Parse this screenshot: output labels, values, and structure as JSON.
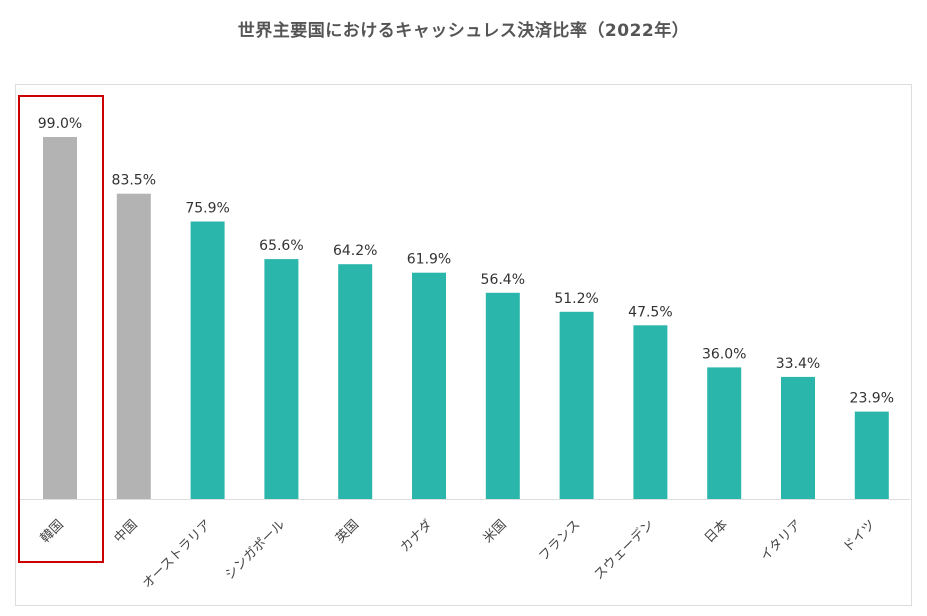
{
  "chart_data": {
    "type": "bar",
    "title": "世界主要国におけるキャッシュレス決済比率（2022年）",
    "categories": [
      "韓国",
      "中国",
      "オーストラリア",
      "シンガポール",
      "英国",
      "カナダ",
      "米国",
      "フランス",
      "スウェーデン",
      "日本",
      "イタリア",
      "ドイツ"
    ],
    "values": [
      99.0,
      83.5,
      75.9,
      65.6,
      64.2,
      61.9,
      56.4,
      51.2,
      47.5,
      36.0,
      33.4,
      23.9
    ],
    "value_labels": [
      "99.0%",
      "83.5%",
      "75.9%",
      "65.6%",
      "64.2%",
      "61.9%",
      "56.4%",
      "51.2%",
      "47.5%",
      "36.0%",
      "33.4%",
      "23.9%"
    ],
    "colors": [
      "#b3b3b3",
      "#b3b3b3",
      "#2bb6ac",
      "#2bb6ac",
      "#2bb6ac",
      "#2bb6ac",
      "#2bb6ac",
      "#2bb6ac",
      "#2bb6ac",
      "#2bb6ac",
      "#2bb6ac",
      "#2bb6ac"
    ],
    "highlight": {
      "category": "韓国",
      "color": "#cc0000"
    },
    "xlabel": "",
    "ylabel": "",
    "ylim": [
      0,
      100
    ],
    "grid": false,
    "legend": "none"
  }
}
